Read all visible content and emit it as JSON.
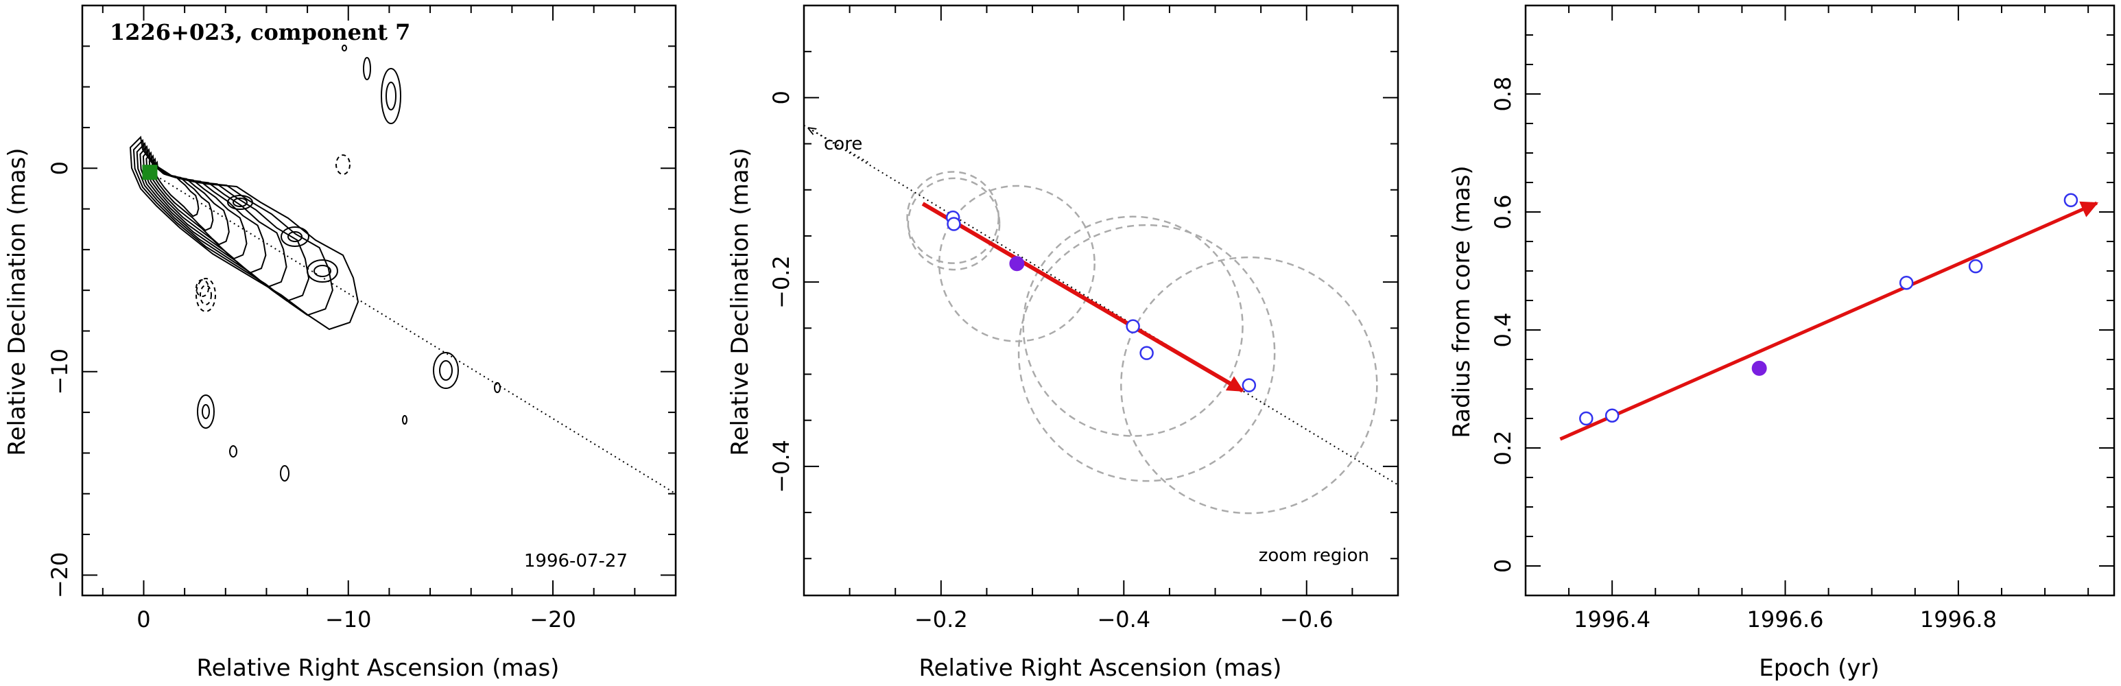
{
  "chart_data": [
    {
      "type": "contour",
      "title": "1226+023, component 7",
      "date": "1996-07-27",
      "xlabel": "Relative Right Ascension (mas)",
      "ylabel": "Relative Declination (mas)",
      "xlim": [
        3,
        -26
      ],
      "ylim": [
        -21,
        8
      ],
      "xticks": [
        0,
        -10,
        -20
      ],
      "yticks": [
        0,
        -10,
        -20
      ],
      "track_line": [
        [
          0,
          0
        ],
        [
          -26,
          -16
        ]
      ],
      "component_marker": {
        "x": -0.3,
        "y": -0.2,
        "color": "#1a8a1a"
      }
    },
    {
      "type": "scatter",
      "label": "zoom region",
      "direction_label": "core",
      "xlabel": "Relative Right Ascension (mas)",
      "ylabel": "Relative Declination (mas)",
      "xlim": [
        -0.05,
        -0.7
      ],
      "ylim": [
        -0.54,
        0.1
      ],
      "xticks": [
        -0.2,
        -0.4,
        -0.6
      ],
      "yticks": [
        0,
        -0.2,
        -0.4
      ],
      "points_open": [
        {
          "x": -0.213,
          "y": -0.13,
          "r": 0.05
        },
        {
          "x": -0.214,
          "y": -0.137,
          "r": 0.05
        },
        {
          "x": -0.41,
          "y": -0.248,
          "r": 0.12
        },
        {
          "x": -0.425,
          "y": -0.277,
          "r": 0.14
        },
        {
          "x": -0.537,
          "y": -0.312,
          "r": 0.14
        }
      ],
      "points_filled": [
        {
          "x": -0.283,
          "y": -0.18,
          "r": 0.085
        }
      ],
      "arrow": {
        "from": [
          -0.18,
          -0.115
        ],
        "to": [
          -0.53,
          -0.318
        ],
        "color": "#e01010"
      },
      "track_line": [
        [
          -0.05,
          -0.03
        ],
        [
          -0.7,
          -0.42
        ]
      ],
      "circle_color": "#aaaaaa",
      "point_color": "#3333ee",
      "filled_color": "#7a1fe0"
    },
    {
      "type": "scatter",
      "xlabel": "Epoch (yr)",
      "ylabel": "Radius from core (mas)",
      "xlim": [
        1996.3,
        1996.98
      ],
      "ylim": [
        -0.05,
        0.95
      ],
      "xticks": [
        1996.4,
        1996.6,
        1996.8
      ],
      "yticks": [
        0,
        0.2,
        0.4,
        0.6,
        0.8
      ],
      "points_open": [
        {
          "x": 1996.37,
          "y": 0.25
        },
        {
          "x": 1996.4,
          "y": 0.255
        },
        {
          "x": 1996.74,
          "y": 0.48
        },
        {
          "x": 1996.82,
          "y": 0.508
        },
        {
          "x": 1996.93,
          "y": 0.62
        }
      ],
      "points_filled": [
        {
          "x": 1996.57,
          "y": 0.335
        }
      ],
      "fit_arrow": {
        "from": [
          1996.34,
          0.215
        ],
        "to": [
          1996.96,
          0.615
        ],
        "color": "#e01010"
      },
      "point_color": "#3333ee",
      "filled_color": "#7a1fe0"
    }
  ]
}
